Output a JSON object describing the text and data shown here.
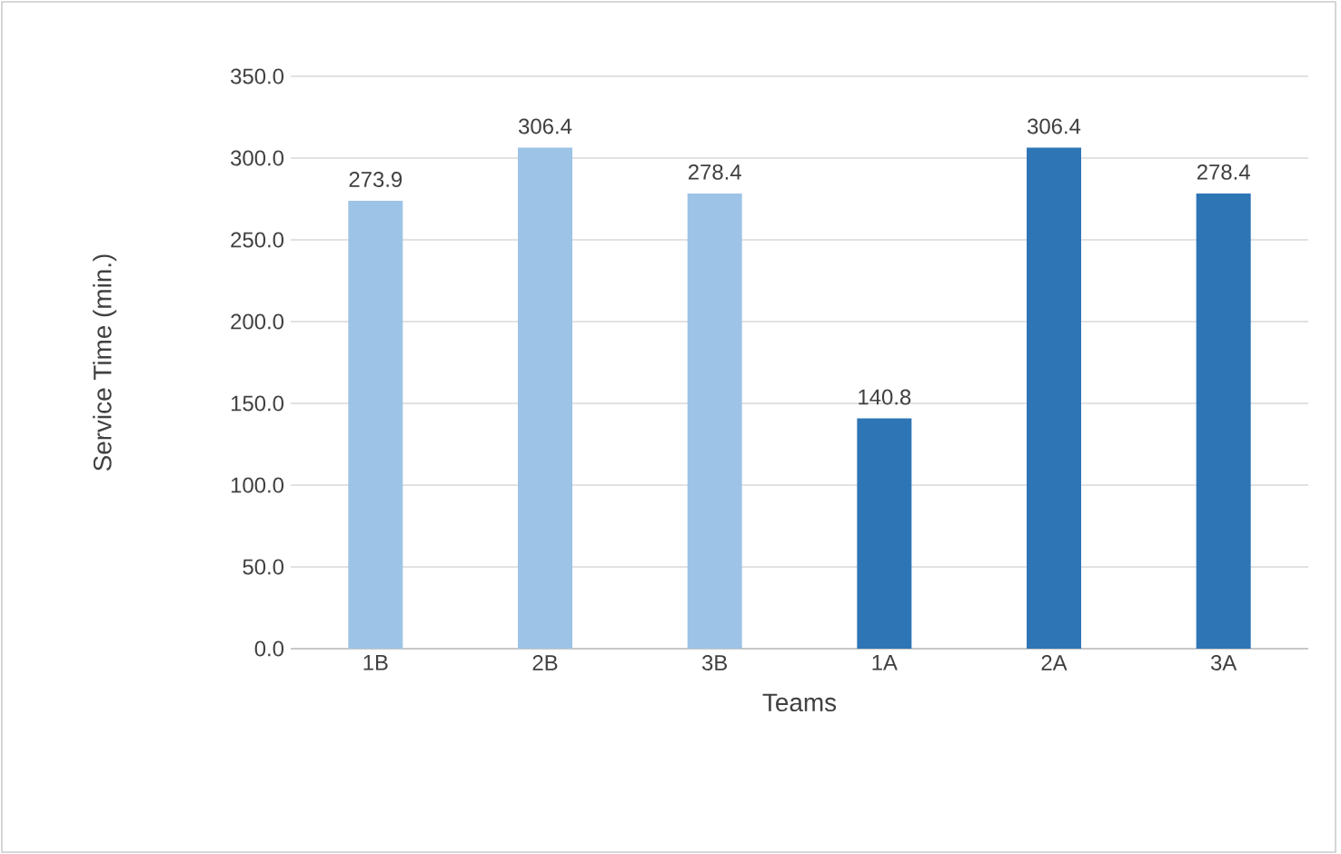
{
  "chart_data": {
    "type": "bar",
    "xlabel": "Teams",
    "ylabel": "Service Time (min.)",
    "categories": [
      "1B",
      "2B",
      "3B",
      "1A",
      "2A",
      "3A"
    ],
    "values": [
      273.9,
      306.4,
      278.4,
      140.8,
      306.4,
      278.4
    ],
    "colors": [
      "#9dc3e6",
      "#9dc3e6",
      "#9dc3e6",
      "#2e75b6",
      "#2e75b6",
      "#2e75b6"
    ],
    "ylim": [
      0,
      350
    ],
    "yticks": [
      {
        "value": 0,
        "label": "0.0"
      },
      {
        "value": 50,
        "label": "50.0"
      },
      {
        "value": 100,
        "label": "100.0"
      },
      {
        "value": 150,
        "label": "150.0"
      },
      {
        "value": 200,
        "label": "200.0"
      },
      {
        "value": 250,
        "label": "250.0"
      },
      {
        "value": 300,
        "label": "300.0"
      },
      {
        "value": 350,
        "label": "350.0"
      }
    ],
    "grid": "y",
    "data_labels": true
  }
}
